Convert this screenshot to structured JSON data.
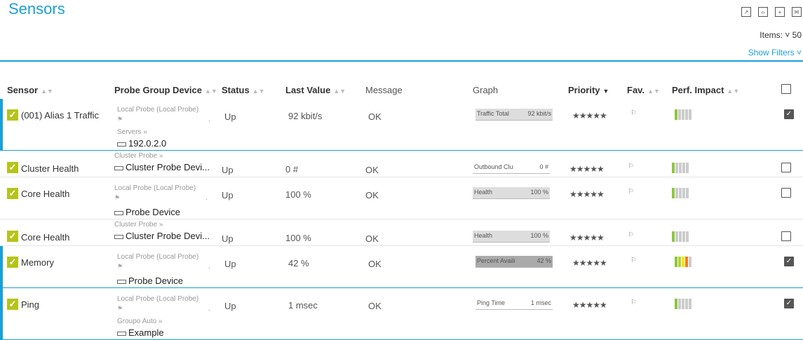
{
  "page": {
    "title": "Sensors",
    "items_label": "Items:",
    "items_value": "50",
    "show_filters": "Show Filters"
  },
  "columns": [
    "Sensor",
    "Probe Group Device",
    "Status",
    "Last Value",
    "Message",
    "Graph",
    "Priority",
    "Fav.",
    "Perf. Impact"
  ],
  "rows": [
    {
      "name": "(001) Alias 1 Traffic",
      "probe": "Local Probe (Local Probe)",
      "group": "Servers »",
      "device": "192.0.2.0",
      "status": "Up",
      "last": "92 kbit/s",
      "message": "OK",
      "graph_label": "Traffic Total",
      "graph_value": "92 kbit/s",
      "perf": 1,
      "checked": true
    },
    {
      "name": "Cluster Health",
      "probe": "",
      "group": "Cluster Probe »",
      "device": "Cluster Probe Devi...",
      "status": "Up",
      "last": "0 #",
      "message": "OK",
      "graph_label": "Outbound Clu",
      "graph_value": "0 #",
      "perf": 1,
      "checked": false
    },
    {
      "name": "Core Health",
      "probe": "Local Probe (Local Probe)",
      "group": "",
      "device": "Probe Device",
      "status": "Up",
      "last": "100 %",
      "message": "OK",
      "graph_label": "Health",
      "graph_value": "100 %",
      "perf": 1,
      "checked": false
    },
    {
      "name": "Core Health",
      "probe": "",
      "group": "Cluster Probe »",
      "device": "Cluster Probe Devi...",
      "status": "Up",
      "last": "100 %",
      "message": "OK",
      "graph_label": "Health",
      "graph_value": "100 %",
      "perf": 1,
      "checked": false
    },
    {
      "name": "Memory",
      "probe": "Local Probe (Local Probe)",
      "group": "",
      "device": "Probe Device",
      "status": "Up",
      "last": "42 %",
      "message": "OK",
      "graph_label": "Percent Availi",
      "graph_value": "42 %",
      "perf": 4,
      "checked": true
    },
    {
      "name": "Ping",
      "probe": "Local Probe (Local Probe)",
      "group": "Groupo Auto »",
      "device": "Example",
      "status": "Up",
      "last": "1 msec",
      "message": "OK",
      "graph_label": "Ping Time",
      "graph_value": "1 msec",
      "perf": 1,
      "checked": true
    }
  ],
  "priority_stars": "★★★★★",
  "colors": {
    "accent": "#1a9fd8",
    "ok": "#b5c41a"
  }
}
